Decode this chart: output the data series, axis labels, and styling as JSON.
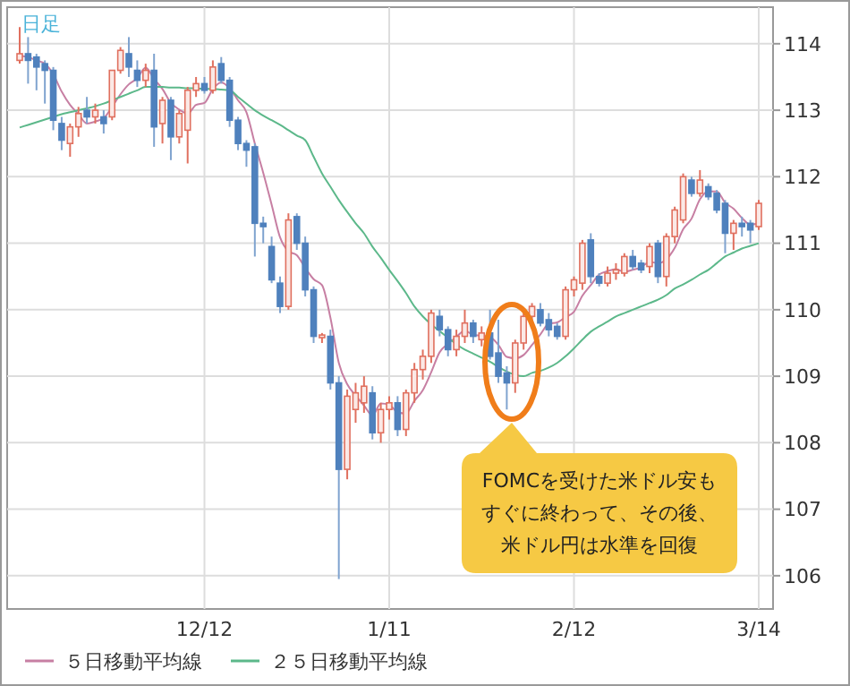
{
  "chart_data": {
    "type": "candlestick",
    "title": "日足",
    "categories": [
      null,
      null,
      null,
      null,
      null,
      null,
      null,
      null,
      null,
      null,
      null,
      null,
      null,
      null,
      null,
      null,
      null,
      null,
      null,
      null,
      null,
      null,
      "12/12",
      null,
      null,
      null,
      null,
      null,
      null,
      null,
      null,
      null,
      null,
      null,
      null,
      null,
      null,
      null,
      null,
      null,
      null,
      null,
      null,
      null,
      "1/11",
      null,
      null,
      null,
      null,
      null,
      null,
      null,
      null,
      null,
      null,
      null,
      null,
      null,
      null,
      null,
      null,
      null,
      null,
      null,
      null,
      null,
      "2/12",
      null,
      null,
      null,
      null,
      null,
      null,
      null,
      null,
      null,
      null,
      null,
      null,
      null,
      null,
      null,
      null,
      null,
      null,
      null,
      null,
      null,
      "3/14"
    ],
    "ohlc": [
      [
        113.75,
        114.25,
        113.7,
        113.85
      ],
      [
        113.85,
        114.1,
        113.4,
        113.75
      ],
      [
        113.8,
        113.85,
        113.3,
        113.65
      ],
      [
        113.7,
        113.75,
        113.1,
        113.6
      ],
      [
        113.6,
        113.65,
        112.7,
        112.85
      ],
      [
        112.8,
        112.9,
        112.4,
        112.55
      ],
      [
        112.5,
        112.8,
        112.3,
        112.75
      ],
      [
        112.75,
        113.05,
        112.6,
        112.95
      ],
      [
        113.0,
        113.2,
        112.8,
        112.9
      ],
      [
        112.9,
        113.1,
        112.8,
        113.0
      ],
      [
        112.9,
        113.0,
        112.65,
        112.8
      ],
      [
        112.9,
        113.6,
        112.85,
        113.6
      ],
      [
        113.6,
        113.95,
        113.55,
        113.9
      ],
      [
        113.85,
        114.1,
        113.5,
        113.65
      ],
      [
        113.6,
        113.75,
        113.35,
        113.45
      ],
      [
        113.45,
        113.7,
        113.35,
        113.6
      ],
      [
        113.6,
        113.85,
        112.45,
        112.75
      ],
      [
        112.8,
        113.2,
        112.5,
        113.15
      ],
      [
        113.15,
        113.2,
        112.25,
        112.6
      ],
      [
        112.6,
        113.0,
        112.5,
        112.95
      ],
      [
        112.7,
        113.35,
        112.2,
        113.3
      ],
      [
        113.3,
        113.5,
        113.2,
        113.4
      ],
      [
        113.4,
        113.5,
        113.25,
        113.3
      ],
      [
        113.3,
        113.75,
        113.25,
        113.65
      ],
      [
        113.7,
        113.8,
        113.4,
        113.45
      ],
      [
        113.45,
        113.5,
        112.75,
        112.85
      ],
      [
        112.85,
        112.9,
        112.4,
        112.5
      ],
      [
        112.5,
        112.55,
        112.15,
        112.4
      ],
      [
        112.45,
        112.5,
        110.8,
        111.3
      ],
      [
        111.3,
        111.4,
        111.0,
        111.25
      ],
      [
        110.95,
        111.1,
        110.4,
        110.45
      ],
      [
        110.4,
        110.5,
        109.95,
        110.05
      ],
      [
        110.05,
        111.45,
        110.0,
        111.35
      ],
      [
        111.4,
        111.45,
        110.9,
        111.0
      ],
      [
        111.0,
        111.1,
        110.2,
        110.3
      ],
      [
        110.3,
        110.35,
        109.5,
        109.6
      ],
      [
        109.58,
        109.65,
        109.5,
        109.62
      ],
      [
        109.6,
        109.7,
        108.8,
        108.9
      ],
      [
        108.9,
        109.0,
        105.95,
        107.6
      ],
      [
        107.6,
        108.8,
        107.45,
        108.7
      ],
      [
        108.5,
        108.9,
        108.3,
        108.75
      ],
      [
        108.6,
        109.0,
        108.45,
        108.85
      ],
      [
        108.75,
        108.85,
        108.05,
        108.15
      ],
      [
        108.15,
        108.6,
        108.0,
        108.5
      ],
      [
        108.5,
        108.7,
        108.35,
        108.6
      ],
      [
        108.6,
        108.7,
        108.1,
        108.2
      ],
      [
        108.2,
        108.8,
        108.1,
        108.75
      ],
      [
        108.75,
        109.2,
        108.6,
        109.1
      ],
      [
        109.1,
        109.4,
        108.95,
        109.3
      ],
      [
        109.3,
        110.0,
        109.2,
        109.95
      ],
      [
        109.9,
        110.0,
        109.6,
        109.7
      ],
      [
        109.7,
        109.75,
        109.3,
        109.4
      ],
      [
        109.4,
        109.7,
        109.3,
        109.6
      ],
      [
        109.6,
        110.0,
        109.5,
        109.8
      ],
      [
        109.8,
        109.85,
        109.5,
        109.6
      ],
      [
        109.55,
        109.75,
        109.45,
        109.65
      ],
      [
        109.65,
        110.0,
        109.25,
        109.3
      ],
      [
        109.35,
        109.85,
        108.9,
        109.0
      ],
      [
        109.05,
        109.15,
        108.5,
        108.9
      ],
      [
        108.9,
        109.55,
        108.75,
        109.5
      ],
      [
        109.5,
        110.0,
        109.4,
        109.9
      ],
      [
        109.9,
        110.1,
        109.8,
        110.05
      ],
      [
        110.0,
        110.1,
        109.75,
        109.8
      ],
      [
        109.85,
        109.95,
        109.6,
        109.7
      ],
      [
        109.75,
        109.8,
        109.55,
        109.6
      ],
      [
        109.6,
        110.35,
        109.55,
        110.3
      ],
      [
        110.3,
        110.5,
        110.2,
        110.45
      ],
      [
        110.4,
        111.05,
        110.3,
        111.0
      ],
      [
        111.05,
        111.15,
        110.4,
        110.5
      ],
      [
        110.5,
        110.55,
        110.35,
        110.4
      ],
      [
        110.4,
        110.65,
        110.35,
        110.55
      ],
      [
        110.55,
        110.7,
        110.45,
        110.6
      ],
      [
        110.55,
        110.85,
        110.5,
        110.8
      ],
      [
        110.8,
        110.9,
        110.6,
        110.65
      ],
      [
        110.7,
        110.75,
        110.55,
        110.6
      ],
      [
        110.65,
        111.0,
        110.55,
        110.95
      ],
      [
        111.0,
        111.05,
        110.4,
        110.5
      ],
      [
        110.5,
        111.15,
        110.35,
        111.1
      ],
      [
        111.1,
        111.55,
        111.0,
        111.5
      ],
      [
        111.35,
        112.05,
        111.3,
        112.0
      ],
      [
        111.95,
        112.0,
        111.7,
        111.75
      ],
      [
        111.75,
        112.1,
        111.7,
        111.95
      ],
      [
        111.85,
        111.9,
        111.65,
        111.7
      ],
      [
        111.75,
        111.8,
        111.45,
        111.5
      ],
      [
        111.6,
        111.65,
        110.85,
        111.15
      ],
      [
        111.15,
        111.35,
        110.9,
        111.3
      ],
      [
        111.3,
        111.4,
        111.1,
        111.25
      ],
      [
        111.3,
        111.35,
        111.0,
        111.2
      ],
      [
        111.25,
        111.65,
        111.2,
        111.6
      ]
    ],
    "series": [
      {
        "type": "line",
        "name": "５日移動平均線",
        "color": "#c77fa3",
        "values": [
          113.82,
          113.8,
          113.75,
          113.7,
          113.54,
          113.28,
          113.08,
          112.94,
          112.8,
          112.83,
          112.88,
          113.05,
          113.24,
          113.39,
          113.48,
          113.64,
          113.47,
          113.32,
          113.11,
          113.01,
          112.95,
          113.08,
          113.11,
          113.32,
          113.42,
          113.33,
          113.15,
          112.97,
          112.5,
          112.06,
          111.58,
          111.09,
          110.88,
          110.82,
          110.63,
          110.46,
          110.37,
          109.88,
          109.2,
          108.88,
          108.71,
          108.56,
          108.41,
          108.59,
          108.57,
          108.46,
          108.44,
          108.63,
          108.79,
          109.06,
          109.36,
          109.49,
          109.59,
          109.69,
          109.62,
          109.61,
          109.59,
          109.47,
          109.29,
          109.27,
          109.32,
          109.47,
          109.63,
          109.79,
          109.81,
          109.89,
          109.97,
          110.21,
          110.37,
          110.53,
          110.58,
          110.61,
          110.57,
          110.6,
          110.64,
          110.72,
          110.7,
          110.76,
          110.93,
          111.21,
          111.37,
          111.66,
          111.78,
          111.78,
          111.61,
          111.52,
          111.38,
          111.28,
          111.3
        ]
      },
      {
        "type": "line",
        "name": "２５日移動平均線",
        "color": "#5cb88a",
        "values": [
          112.74,
          112.78,
          112.82,
          112.86,
          112.9,
          112.94,
          112.97,
          113.0,
          113.03,
          113.06,
          113.1,
          113.15,
          113.2,
          113.25,
          113.3,
          113.35,
          113.35,
          113.35,
          113.34,
          113.34,
          113.33,
          113.33,
          113.32,
          113.32,
          113.31,
          113.3,
          113.2,
          113.1,
          113.0,
          112.92,
          112.85,
          112.78,
          112.7,
          112.62,
          112.55,
          112.3,
          112.05,
          111.85,
          111.65,
          111.47,
          111.3,
          111.15,
          110.95,
          110.78,
          110.6,
          110.43,
          110.25,
          110.05,
          109.9,
          109.78,
          109.68,
          109.58,
          109.48,
          109.4,
          109.34,
          109.28,
          109.22,
          109.14,
          109.07,
          109.02,
          109.0,
          109.05,
          109.08,
          109.13,
          109.2,
          109.3,
          109.42,
          109.55,
          109.67,
          109.75,
          109.82,
          109.9,
          109.95,
          110.0,
          110.05,
          110.1,
          110.15,
          110.22,
          110.32,
          110.38,
          110.45,
          110.53,
          110.6,
          110.7,
          110.8,
          110.86,
          110.92,
          110.96,
          111.0
        ]
      }
    ],
    "ylim": [
      105.5,
      114.55
    ],
    "yticks": [
      106,
      107,
      108,
      109,
      110,
      111,
      112,
      113,
      114
    ],
    "grid": true,
    "legend": "bottom",
    "annotations": [
      "FOMCを受けた米ドル安も",
      "すぐに終わって、その後、",
      "米ドル円は水準を回復"
    ]
  }
}
